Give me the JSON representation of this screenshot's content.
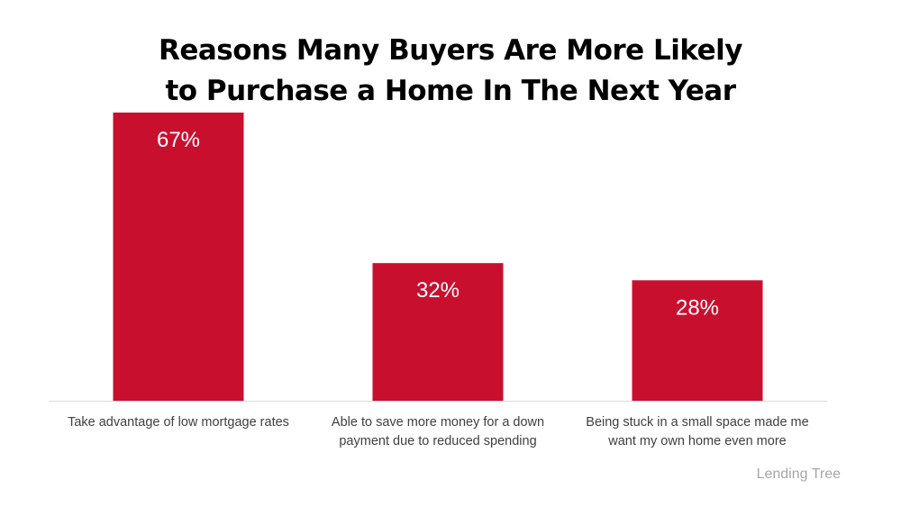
{
  "chart_data": {
    "type": "bar",
    "title_lines": [
      "Reasons Many Buyers Are More Likely",
      "to Purchase a Home In The Next Year"
    ],
    "categories": [
      [
        "Take advantage of low mortgage rates"
      ],
      [
        "Able to save more money for a down",
        "payment due to reduced spending"
      ],
      [
        "Being stuck in a small space made me",
        "want my own home even more"
      ]
    ],
    "values": [
      67,
      32,
      28
    ],
    "data_labels": [
      "67%",
      "32%",
      "28%"
    ],
    "ylim": [
      0,
      67
    ],
    "grid": false,
    "legend": "none",
    "colors": {
      "bar": "#c8102e",
      "axis": "#d9d9d9",
      "label": "#ffffff",
      "category_text": "#404040"
    }
  },
  "source": "Lending Tree"
}
